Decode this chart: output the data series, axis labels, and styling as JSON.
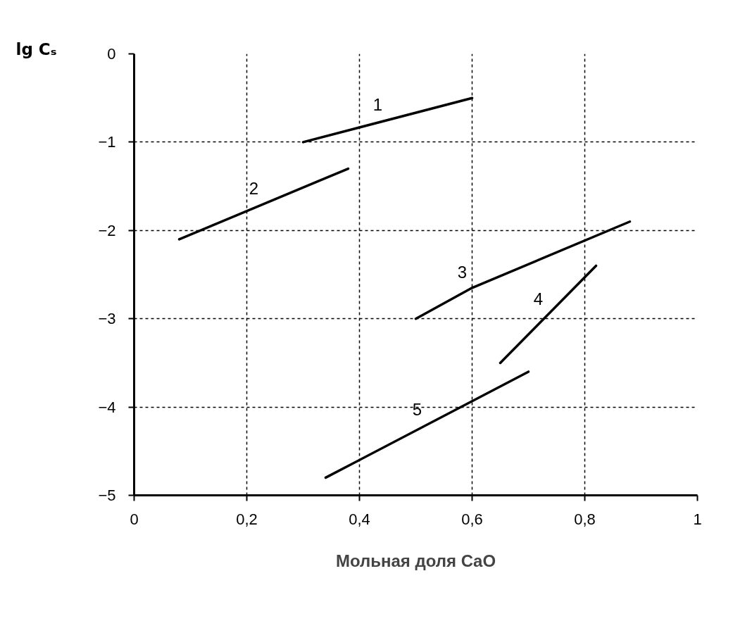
{
  "chart_data": {
    "type": "line",
    "xlabel": "Мольная доля CaO",
    "ylabel": "lg Cₛ",
    "xlim": [
      0,
      1
    ],
    "ylim": [
      -5,
      0
    ],
    "xticks": [
      0,
      {
        "value": 0.2,
        "label": "0,2"
      },
      {
        "value": 0.4,
        "label": "0,4"
      },
      {
        "value": 0.6,
        "label": "0,6"
      },
      {
        "value": 0.8,
        "label": "0,8"
      },
      1
    ],
    "yticks": [
      -5,
      -4,
      -3,
      -2,
      -1,
      0
    ],
    "grid": true,
    "marker": "none",
    "line_style": "solid",
    "series": [
      {
        "name": "1",
        "color": "#000000",
        "x": [
          0.3,
          0.6
        ],
        "values": [
          -1.0,
          -0.5
        ]
      },
      {
        "name": "2",
        "color": "#000000",
        "x": [
          0.08,
          0.38
        ],
        "values": [
          -2.1,
          -1.3
        ]
      },
      {
        "name": "3",
        "color": "#000000",
        "x": [
          0.5,
          0.6,
          0.88
        ],
        "values": [
          -3.0,
          -2.65,
          -1.9
        ]
      },
      {
        "name": "4",
        "color": "#000000",
        "x": [
          0.65,
          0.82
        ],
        "values": [
          -3.5,
          -2.4
        ]
      },
      {
        "name": "5",
        "color": "#000000",
        "x": [
          0.34,
          0.7
        ],
        "values": [
          -4.8,
          -3.6
        ]
      }
    ]
  }
}
